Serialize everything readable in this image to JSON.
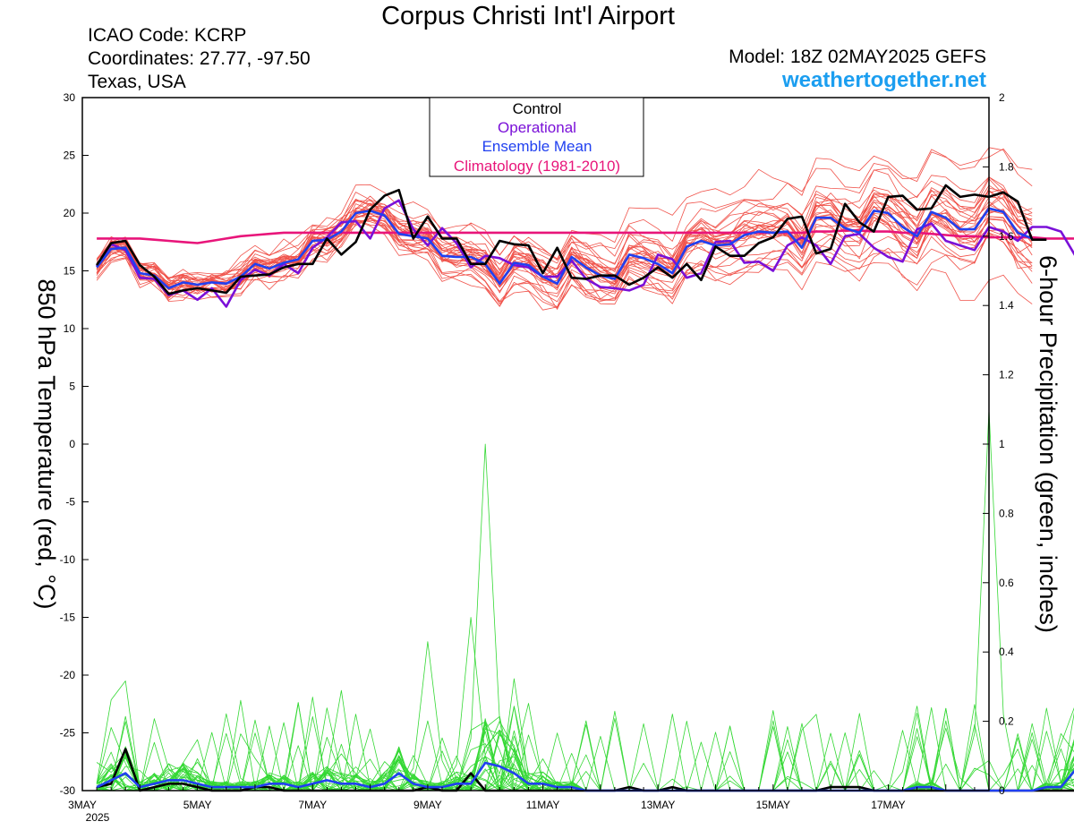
{
  "header": {
    "title": "Corpus Christi Int'l Airport",
    "icao": "ICAO Code: KCRP",
    "coordinates": "Coordinates: 27.77, -97.50",
    "location": "Texas, USA",
    "model": "Model: 18Z 02MAY2025 GEFS",
    "site": "weathertogether.net"
  },
  "colors": {
    "members": "#f0524a",
    "precip": "#34d834",
    "control": "#000000",
    "operational": "#7a10d8",
    "ensemble_mean": "#2040f0",
    "climatology": "#e8157a",
    "site": "#1b9ef0"
  },
  "chart_data": {
    "type": "line",
    "xlabel": "",
    "x_tick_labels": [
      "3MAY",
      "5MAY",
      "7MAY",
      "9MAY",
      "11MAY",
      "13MAY",
      "15MAY",
      "17MAY"
    ],
    "x_tick_days": [
      3,
      5,
      7,
      9,
      11,
      13,
      15,
      17
    ],
    "x_year_label": "2025",
    "x_range_days": [
      3,
      18.75
    ],
    "x_step_hours": 6,
    "ylabel_left": "850 hPa Temperature (red, °C)",
    "ylim_left": [
      -30,
      30
    ],
    "yticks_left": [
      30,
      25,
      20,
      15,
      10,
      5,
      0,
      -5,
      -10,
      -15,
      -20,
      -25,
      -30
    ],
    "ylabel_right": "6-hour Precipitation (green, inches)",
    "ylim_right": [
      0,
      2
    ],
    "yticks_right": [
      "2",
      "1.8",
      "1.6",
      "1.4",
      "1.2",
      "1",
      "0.8",
      "0.6",
      "0.4",
      "0.2",
      "0"
    ],
    "legend": {
      "position": "top-center",
      "entries": [
        "Control",
        "Operational",
        "Ensemble Mean",
        "Climatology (1981-2010)"
      ]
    },
    "series": [
      {
        "name": "Control",
        "axis": "temperature",
        "values": [
          15.5,
          17.4,
          17.6,
          15.5,
          14.5,
          13,
          13.3,
          13.5,
          13.3,
          13.1,
          14.5,
          14.6,
          14.7,
          15.3,
          15.6,
          15.6,
          17.8,
          16.4,
          17.5,
          20.3,
          21.5,
          22,
          17.8,
          19.7,
          17.8,
          17.8,
          15.6,
          15.6,
          17.6,
          17.3,
          17.2,
          14.8,
          17,
          14.4,
          14.3,
          14.6,
          14.6,
          13.8,
          14.4,
          15.3,
          14.4,
          15.6,
          14.2,
          17.1,
          16.3,
          16.3,
          17.4,
          17.9,
          19.5,
          19.7,
          16.5,
          16.9,
          20.8,
          19.2,
          18.4,
          21.4,
          21.5,
          20.3,
          20.4,
          22.4,
          21.4,
          21.6,
          21.4,
          21.8,
          21,
          17.7,
          17.7
        ]
      },
      {
        "name": "Operational",
        "axis": "temperature",
        "values": [
          15.4,
          17.3,
          16.8,
          14.4,
          14.3,
          12.9,
          13.3,
          12.5,
          13.5,
          11.9,
          14.2,
          15.1,
          14.6,
          15.6,
          14.8,
          17,
          17.9,
          19.2,
          19.3,
          17.8,
          20.4,
          21.1,
          18.6,
          17.2,
          18.7,
          17.4,
          15.3,
          16.3,
          16.1,
          15.5,
          15.3,
          14.5,
          14.5,
          15.9,
          14.3,
          13.6,
          13.5,
          13.3,
          13.8,
          16.4,
          16,
          14.4,
          14.8,
          17.5,
          17.6,
          15.7,
          15.8,
          15,
          17.2,
          17.9,
          17.2,
          15.6,
          18,
          18.2,
          17,
          16.2,
          15.8,
          18.6,
          19.1,
          17.6,
          17.2,
          16.8,
          18.8,
          18.4,
          17.6,
          18.8,
          18.8,
          18.4,
          16.3
        ]
      },
      {
        "name": "Ensemble Mean",
        "axis": "temperature",
        "values": [
          15.3,
          16.9,
          17,
          14.8,
          14.6,
          13.5,
          14,
          13.8,
          14,
          13.9,
          14.5,
          15.6,
          15.2,
          15.7,
          16,
          17.6,
          17.7,
          18.4,
          20,
          20.2,
          19.8,
          18.2,
          18,
          17.8,
          16.3,
          16.2,
          16.2,
          15.6,
          13.9,
          15.7,
          15.5,
          14.5,
          13.9,
          16.2,
          15.3,
          14.6,
          14.3,
          16.4,
          16.1,
          15.6,
          14.8,
          17.1,
          17.6,
          17.2,
          17.3,
          18.1,
          18.4,
          18.3,
          18.4,
          17,
          19.6,
          19.6,
          18.7,
          18.3,
          20.2,
          20,
          18.8,
          18,
          20.1,
          19.6,
          18.6,
          18.6,
          20.4,
          20.1,
          18.3,
          17.8
        ]
      },
      {
        "name": "Climatology (1981-2010)",
        "axis": "temperature",
        "values": [
          17.8,
          17.8,
          17.8,
          17.8,
          17.7,
          17.6,
          17.5,
          17.4,
          17.6,
          17.8,
          18,
          18.1,
          18.2,
          18.3,
          18.3,
          18.3,
          18.3,
          18.3,
          18.3,
          18.3,
          18.3,
          18.3,
          18.3,
          18.3,
          18.3,
          18.3,
          18.3,
          18.3,
          18.3,
          18.3,
          18.3,
          18.3,
          18.3,
          18.3,
          18.3,
          18.3,
          18.3,
          18.3,
          18.3,
          18.3,
          18.3,
          18.3,
          18.3,
          18.3,
          18.3,
          18.3,
          18.3,
          18.3,
          18.3,
          18.3,
          18.4,
          18.4,
          18.5,
          18.5,
          18.4,
          18.4,
          18.3,
          18.3,
          18.2,
          18.1,
          18,
          18,
          17.9,
          17.9,
          17.9,
          17.9,
          17.8,
          17.8,
          17.8,
          17.8,
          17.8,
          17.8,
          17.8
        ]
      },
      {
        "name": "Control",
        "axis": "precipitation",
        "values": [
          0.01,
          0.02,
          0.12,
          0,
          0.01,
          0.02,
          0.02,
          0.01,
          0,
          0,
          0,
          0.01,
          0.01,
          0,
          0,
          0,
          0,
          0,
          0,
          0,
          0,
          0,
          0,
          0.01,
          0,
          0,
          0.05,
          0,
          0,
          0,
          0,
          0,
          0,
          0,
          0,
          0,
          0,
          0.01,
          0,
          0,
          0.01,
          0,
          0,
          0,
          0,
          0,
          0,
          0,
          0,
          0,
          0,
          0.01,
          0.01,
          0.01,
          0,
          0,
          0,
          0,
          0,
          0,
          0,
          0,
          0,
          0,
          0,
          0,
          0,
          0,
          0
        ]
      },
      {
        "name": "Ensemble Mean",
        "axis": "precipitation",
        "values": [
          0.01,
          0.03,
          0.05,
          0.01,
          0.02,
          0.03,
          0.03,
          0.02,
          0.01,
          0.01,
          0.01,
          0.01,
          0.02,
          0.02,
          0.01,
          0.02,
          0.03,
          0.02,
          0.02,
          0.01,
          0.02,
          0.05,
          0.02,
          0.01,
          0.01,
          0.02,
          0.02,
          0.08,
          0.07,
          0.05,
          0.02,
          0.02,
          0.01,
          0.01,
          0,
          0,
          0,
          0,
          0,
          0,
          0,
          0,
          0,
          0,
          0,
          0,
          0,
          0,
          0,
          0,
          0,
          0,
          0,
          0,
          0,
          0,
          0,
          0.01,
          0.01,
          0,
          0,
          0,
          0,
          0,
          0,
          0,
          0.01,
          0.01,
          0.06,
          0.01,
          0.01,
          0
        ]
      }
    ],
    "ensemble_member_count": 30,
    "ensemble_members_note": "thin red lines: individual GEFS members (temperature); thin green lines: individual members (precipitation)"
  }
}
